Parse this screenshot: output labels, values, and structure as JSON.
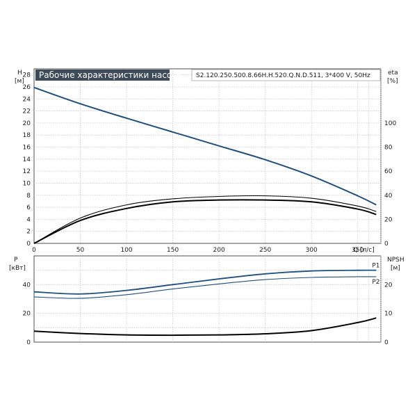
{
  "chart_data": [
    {
      "type": "line",
      "title": "Рабочие характеристики насоса",
      "model": "S2.120.250.500.8.66H.H.520.Q.N.D.511, 3*400 V, 50Hz",
      "xlabel": "Q [л/с]",
      "ylabel_left_name": "H",
      "ylabel_left_unit": "[м]",
      "ylabel_right_name": "eta",
      "ylabel_right_unit": "[%]",
      "xlim": [
        0,
        375
      ],
      "ylim_left": [
        0,
        29
      ],
      "ylim_right": [
        0,
        145
      ],
      "x_ticks": [
        "0",
        "50",
        "100",
        "150",
        "200",
        "250",
        "300",
        "350"
      ],
      "y_left_ticks": [
        "0",
        "2",
        "4",
        "6",
        "8",
        "10",
        "12",
        "14",
        "16",
        "18",
        "20",
        "22",
        "24",
        "26",
        "28"
      ],
      "y_right_ticks": [
        "0",
        "20",
        "40",
        "60",
        "80",
        "100"
      ],
      "grid": true,
      "colors": {
        "head": "#1f4f7f",
        "eta": "#000000"
      },
      "series": [
        {
          "axis": "left",
          "x": [
            0,
            50,
            100,
            150,
            200,
            250,
            300,
            350,
            370
          ],
          "values": [
            25.9,
            23.2,
            20.8,
            18.5,
            16.2,
            13.9,
            11.2,
            7.9,
            6.4
          ]
        },
        {
          "axis": "right",
          "x": [
            0,
            50,
            100,
            150,
            200,
            250,
            300,
            350,
            370
          ],
          "values": [
            0,
            21,
            32,
            37,
            39,
            39.5,
            37.5,
            31,
            26.5
          ]
        },
        {
          "axis": "right",
          "x": [
            0,
            50,
            100,
            150,
            200,
            250,
            300,
            350,
            370
          ],
          "values": [
            0,
            19,
            29,
            34.5,
            36,
            36,
            34.5,
            28.5,
            24
          ]
        }
      ]
    },
    {
      "type": "line",
      "xlim": [
        0,
        375
      ],
      "ylim_left": [
        0,
        60
      ],
      "ylim_right": [
        0,
        30
      ],
      "ylabel_left_name": "P",
      "ylabel_left_unit": "[кВт]",
      "ylabel_right_name": "NPSH",
      "ylabel_right_unit": "[м]",
      "y_left_ticks": [
        "0",
        "20",
        "40"
      ],
      "y_right_ticks": [
        "0",
        "10",
        "20"
      ],
      "grid": true,
      "colors": {
        "power": "#1f4f7f",
        "npsh": "#000000"
      },
      "series": [
        {
          "name": "P1",
          "axis": "left",
          "x": [
            0,
            50,
            100,
            150,
            200,
            250,
            300,
            350,
            370
          ],
          "values": [
            35,
            33.5,
            36,
            40,
            44,
            47.5,
            49.5,
            50,
            50
          ]
        },
        {
          "name": "P2",
          "axis": "left",
          "x": [
            0,
            50,
            100,
            150,
            200,
            250,
            300,
            350,
            370
          ],
          "values": [
            31.5,
            30.5,
            33,
            37,
            40.5,
            43.5,
            45,
            45.5,
            45.5
          ]
        },
        {
          "axis": "right",
          "x": [
            0,
            50,
            100,
            150,
            200,
            250,
            300,
            350,
            370
          ],
          "values": [
            3.8,
            3,
            2.5,
            2.4,
            2.5,
            2.9,
            4,
            6.8,
            8.4
          ]
        }
      ]
    }
  ]
}
